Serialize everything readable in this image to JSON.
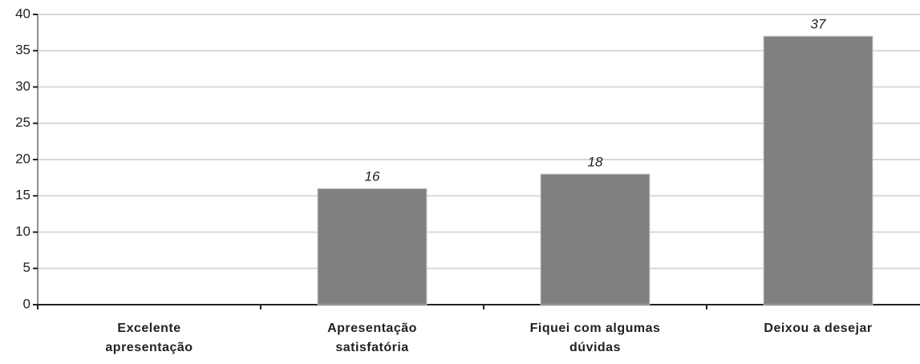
{
  "chart_data": {
    "type": "bar",
    "categories": [
      "Excelente apresentação",
      "Apresentação satisfatória",
      "Fiquei com algumas dúvidas",
      "Deixou a desejar"
    ],
    "values": [
      0,
      16,
      18,
      37
    ],
    "color": "#808080",
    "ylim": [
      0,
      40
    ],
    "yticks": [
      0,
      5,
      10,
      15,
      20,
      25,
      30,
      35,
      40
    ],
    "grid": true
  }
}
